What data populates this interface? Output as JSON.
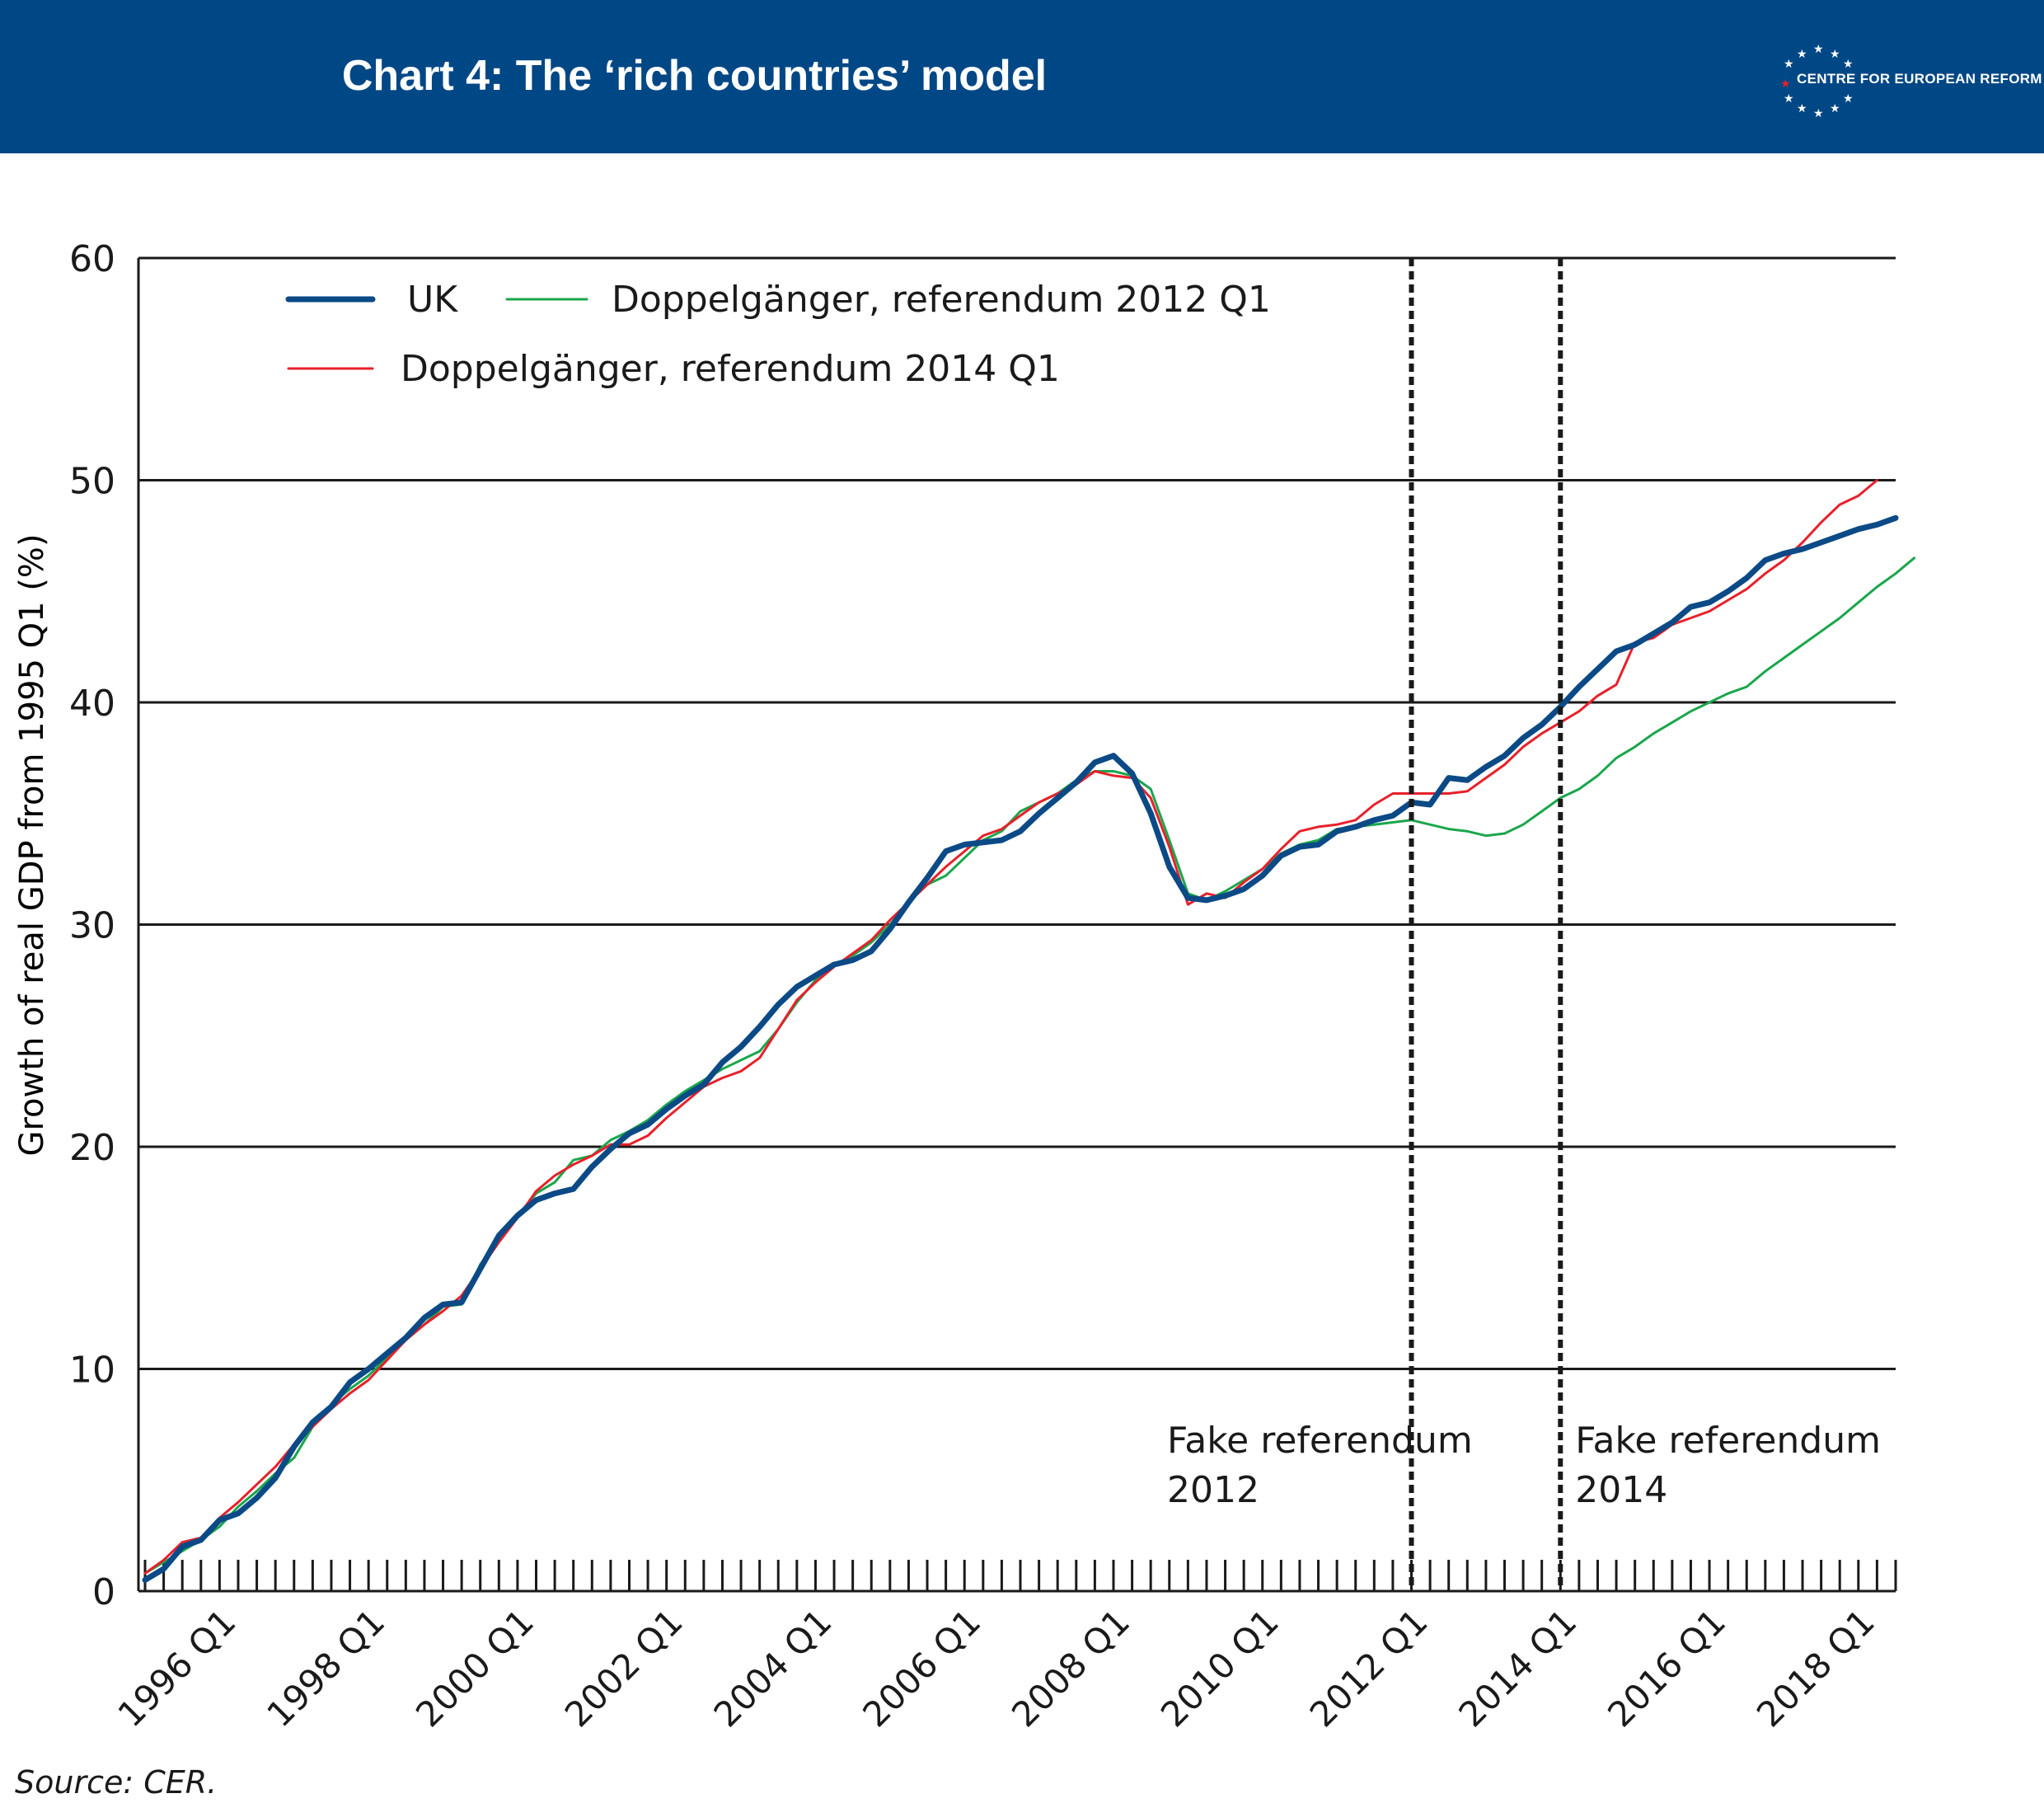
{
  "header": {
    "title": "Chart 4: The ‘rich countries’ model",
    "logo_text": "CENTRE FOR EUROPEAN REFORM"
  },
  "source": "Source: CER.",
  "colors": {
    "header_bg": "#004785",
    "uk": "#0b4a86",
    "dg2012": "#1aa64b",
    "dg2014": "#e8202a"
  },
  "chart_data": {
    "type": "line",
    "ylabel": "Growth of real GDP from 1995 Q1 (%)",
    "ylim": [
      0,
      60
    ],
    "yticks": [
      0,
      10,
      20,
      30,
      40,
      50,
      60
    ],
    "xlabels": [
      "1996 Q1",
      "1998 Q1",
      "2000 Q1",
      "2002 Q1",
      "2004 Q1",
      "2006 Q1",
      "2008 Q1",
      "2010 Q1",
      "2012 Q1",
      "2014 Q1",
      "2016 Q1",
      "2018 Q1"
    ],
    "xrange": [
      "1995 Q1",
      "2018 Q1"
    ],
    "grid": "horizontal",
    "legend": "top-left",
    "series": [
      {
        "name": "UK",
        "color": "#0b4a86",
        "width": 7,
        "values": [
          0.5,
          1.0,
          2.0,
          2.3,
          3.2,
          3.5,
          4.2,
          5.1,
          6.5,
          7.6,
          8.3,
          9.4,
          10.0,
          10.7,
          11.4,
          12.3,
          12.9,
          13.0,
          14.5,
          16.0,
          16.9,
          17.6,
          17.9,
          18.1,
          19.1,
          19.9,
          20.6,
          21.0,
          21.7,
          22.3,
          22.8,
          23.8,
          24.5,
          25.4,
          26.4,
          27.2,
          27.7,
          28.2,
          28.4,
          28.8,
          29.8,
          31.0,
          32.1,
          33.3,
          33.6,
          33.7,
          33.8,
          34.2,
          35.0,
          35.7,
          36.4,
          37.3,
          37.6,
          36.8,
          35.0,
          32.6,
          31.2,
          31.1,
          31.3,
          31.6,
          32.2,
          33.1,
          33.5,
          33.6,
          34.2,
          34.4,
          34.7,
          34.9,
          35.5,
          35.4,
          36.6,
          36.5,
          37.1,
          37.6,
          38.4,
          39.0,
          39.8,
          40.7,
          41.5,
          42.3,
          42.6,
          43.1,
          43.6,
          44.3,
          44.5,
          45.0,
          45.6,
          46.4,
          46.7,
          46.9,
          47.2,
          47.5,
          47.8,
          48.0,
          48.3
        ]
      },
      {
        "name": "Doppelgänger, referendum 2012 Q1",
        "color": "#1aa64b",
        "width": 3,
        "values": [
          0.8,
          1.3,
          1.8,
          2.3,
          2.9,
          3.8,
          4.5,
          5.3,
          6.0,
          7.4,
          8.4,
          9.1,
          9.7,
          10.5,
          11.3,
          12.0,
          12.8,
          12.9,
          14.7,
          15.8,
          16.9,
          17.9,
          18.4,
          19.4,
          19.6,
          20.3,
          20.7,
          21.2,
          21.9,
          22.5,
          23.0,
          23.5,
          23.9,
          24.3,
          25.3,
          26.5,
          27.5,
          28.2,
          28.6,
          29.2,
          30.0,
          31.0,
          31.8,
          32.2,
          33.0,
          33.8,
          34.2,
          35.1,
          35.5,
          35.9,
          36.5,
          36.9,
          36.9,
          36.7,
          36.1,
          33.8,
          31.4,
          31.1,
          31.5,
          32.0,
          32.5,
          33.2,
          33.6,
          33.8,
          34.3,
          34.4,
          34.5,
          34.6,
          34.7,
          34.5,
          34.3,
          34.2,
          34.0,
          34.1,
          34.5,
          35.1,
          35.7,
          36.1,
          36.7,
          37.5,
          38.0,
          38.6,
          39.1,
          39.6,
          40.0,
          40.4,
          40.7,
          41.4,
          42.0,
          42.6,
          43.2,
          43.8,
          44.5,
          45.2,
          45.8,
          46.5
        ]
      },
      {
        "name": "Doppelgänger, referendum 2014 Q1",
        "color": "#e8202a",
        "width": 3,
        "values": [
          0.8,
          1.4,
          2.2,
          2.4,
          3.3,
          4.0,
          4.8,
          5.6,
          6.6,
          7.4,
          8.2,
          8.9,
          9.5,
          10.4,
          11.3,
          12.0,
          12.6,
          13.3,
          14.5,
          15.7,
          16.8,
          18.0,
          18.7,
          19.2,
          19.6,
          20.1,
          20.1,
          20.5,
          21.3,
          22.0,
          22.7,
          23.1,
          23.4,
          24.0,
          25.3,
          26.6,
          27.4,
          28.1,
          28.7,
          29.3,
          30.2,
          31.0,
          31.8,
          32.6,
          33.3,
          34.0,
          34.3,
          34.9,
          35.5,
          35.9,
          36.3,
          36.9,
          36.7,
          36.6,
          35.7,
          33.5,
          30.9,
          31.4,
          31.2,
          31.9,
          32.5,
          33.4,
          34.2,
          34.4,
          34.5,
          34.7,
          35.4,
          35.9,
          35.9,
          35.9,
          35.9,
          36.0,
          36.6,
          37.2,
          38.0,
          38.6,
          39.1,
          39.6,
          40.3,
          40.8,
          42.7,
          42.9,
          43.5,
          43.8,
          44.1,
          44.6,
          45.1,
          45.8,
          46.4,
          47.2,
          48.1,
          48.9,
          49.3,
          50.0
        ]
      }
    ],
    "annotations": [
      {
        "x": "2012 Q1",
        "label": "Fake referendum 2012",
        "label_lines": [
          "Fake referendum",
          "2012"
        ]
      },
      {
        "x": "2014 Q1",
        "label": "Fake referendum 2014",
        "label_lines": [
          "Fake referendum",
          "2014"
        ]
      }
    ]
  }
}
